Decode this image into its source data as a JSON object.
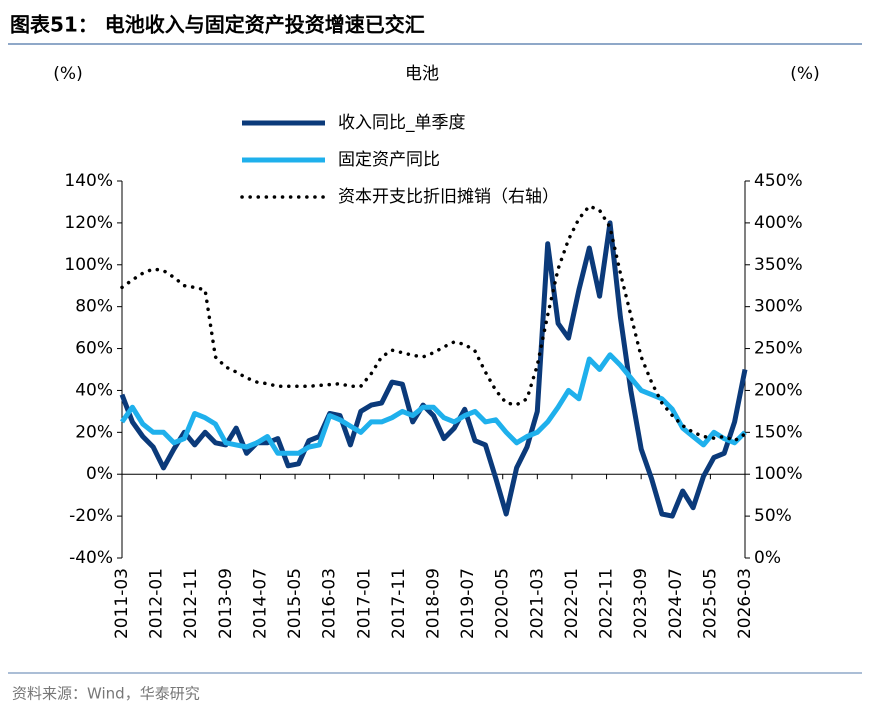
{
  "header": {
    "title": "图表51：  电池收入与固定资产投资增速已交汇"
  },
  "footer": {
    "source": "资料来源：Wind，华泰研究"
  },
  "chart_data": {
    "type": "line",
    "title": "电池",
    "y_label": "(%)",
    "y2_label": "(%)",
    "legend": "top",
    "x": [
      "2011-03",
      "2011-06",
      "2011-09",
      "2011-12",
      "2012-03",
      "2012-06",
      "2012-09",
      "2012-12",
      "2013-03",
      "2013-06",
      "2013-09",
      "2013-12",
      "2014-03",
      "2014-06",
      "2014-09",
      "2014-12",
      "2015-03",
      "2015-06",
      "2015-09",
      "2015-12",
      "2016-03",
      "2016-06",
      "2016-09",
      "2016-12",
      "2017-03",
      "2017-06",
      "2017-09",
      "2017-12",
      "2018-03",
      "2018-06",
      "2018-09",
      "2018-12",
      "2019-03",
      "2019-06",
      "2019-09",
      "2019-12",
      "2020-03",
      "2020-06",
      "2020-09",
      "2020-12",
      "2021-03",
      "2021-06",
      "2021-09",
      "2021-12",
      "2022-03",
      "2022-06",
      "2022-09",
      "2022-12",
      "2023-03",
      "2023-06",
      "2023-09",
      "2023-12",
      "2024-03",
      "2024-06",
      "2024-09",
      "2024-12",
      "2025-03",
      "2025-06",
      "2025-09",
      "2025-12",
      "2026-03"
    ],
    "xlim": [
      "2011-03",
      "2026-03"
    ],
    "xticks": [
      "2011-03",
      "2012-01",
      "2012-11",
      "2013-09",
      "2014-07",
      "2015-05",
      "2016-03",
      "2017-01",
      "2017-11",
      "2018-09",
      "2019-07",
      "2020-05",
      "2021-03",
      "2022-01",
      "2022-11",
      "2023-09",
      "2024-07",
      "2025-05",
      "2026-03"
    ],
    "ylim": [
      -40,
      140
    ],
    "yticks": [
      {
        "value": -40,
        "label": "-40%"
      },
      {
        "value": -20,
        "label": "-20%"
      },
      {
        "value": 0,
        "label": "0%"
      },
      {
        "value": 20,
        "label": "20%"
      },
      {
        "value": 40,
        "label": "40%"
      },
      {
        "value": 60,
        "label": "60%"
      },
      {
        "value": 80,
        "label": "80%"
      },
      {
        "value": 100,
        "label": "100%"
      },
      {
        "value": 120,
        "label": "120%"
      },
      {
        "value": 140,
        "label": "140%"
      }
    ],
    "y2lim": [
      0,
      450
    ],
    "y2ticks": [
      {
        "value": 0,
        "label": "0%"
      },
      {
        "value": 50,
        "label": "50%"
      },
      {
        "value": 100,
        "label": "100%"
      },
      {
        "value": 150,
        "label": "150%"
      },
      {
        "value": 200,
        "label": "200%"
      },
      {
        "value": 250,
        "label": "250%"
      },
      {
        "value": 300,
        "label": "300%"
      },
      {
        "value": 350,
        "label": "350%"
      },
      {
        "value": 400,
        "label": "400%"
      },
      {
        "value": 450,
        "label": "450%"
      }
    ],
    "series": [
      {
        "name": "收入同比_单季度",
        "color": "#0b3a7a",
        "style": "solid",
        "values": [
          38,
          25,
          18,
          13,
          3,
          12,
          20,
          14,
          20,
          15,
          14,
          22,
          10,
          15,
          15,
          17,
          4,
          5,
          16,
          18,
          29,
          28,
          14,
          30,
          33,
          34,
          44,
          43,
          25,
          33,
          28,
          17,
          22,
          31,
          16,
          14,
          -2,
          -19,
          3,
          13,
          30,
          110,
          72,
          65,
          88,
          108,
          85,
          120,
          75,
          40,
          12,
          -2,
          -19,
          -20,
          -8,
          -16,
          -1,
          8,
          10,
          25,
          50
        ]
      },
      {
        "name": "固定资产同比",
        "color": "#1fb0ec",
        "style": "solid",
        "values": [
          25,
          32,
          24,
          20,
          20,
          15,
          17,
          29,
          27,
          24,
          15,
          14,
          13,
          15,
          18,
          10,
          10,
          10,
          13,
          14,
          28,
          26,
          23,
          20,
          25,
          25,
          27,
          30,
          28,
          32,
          32,
          27,
          25,
          28,
          30,
          25,
          26,
          20,
          15,
          18,
          20,
          25,
          32,
          40,
          36,
          55,
          50,
          57,
          52,
          46,
          40,
          38,
          36,
          31,
          22,
          18,
          14,
          20,
          17,
          15,
          20
        ]
      },
      {
        "name": "资本开支比折旧摊销（右轴）",
        "color": "#000000",
        "style": "dotted",
        "axis": "y2",
        "values": [
          323,
          332,
          340,
          345,
          343,
          335,
          325,
          323,
          320,
          240,
          228,
          222,
          215,
          210,
          208,
          205,
          205,
          205,
          205,
          206,
          207,
          208,
          205,
          205,
          220,
          240,
          248,
          245,
          242,
          240,
          245,
          252,
          258,
          255,
          247,
          222,
          200,
          185,
          183,
          190,
          230,
          290,
          345,
          380,
          405,
          420,
          415,
          395,
          340,
          290,
          240,
          210,
          185,
          170,
          158,
          150,
          145,
          143,
          145,
          140,
          148
        ]
      }
    ]
  }
}
